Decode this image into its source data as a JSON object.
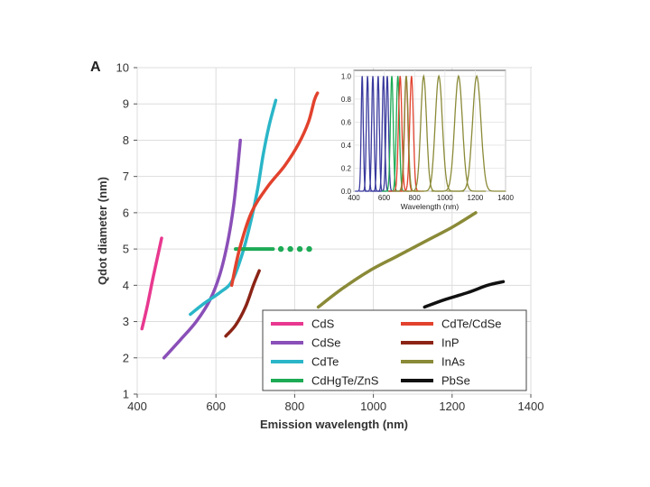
{
  "chart_data": {
    "type": "line",
    "panel_label": "A",
    "xlabel": "Emission wavelength (nm)",
    "ylabel": "Qdot diameter (nm)",
    "xlim": [
      400,
      1400
    ],
    "ylim": [
      1,
      10
    ],
    "xticks": [
      "400",
      "600",
      "800",
      "1000",
      "1200",
      "1400"
    ],
    "yticks": [
      "1",
      "2",
      "3",
      "4",
      "5",
      "6",
      "7",
      "8",
      "9",
      "10"
    ],
    "grid": true,
    "legend_position": "bottom-right",
    "series": [
      {
        "name": "CdS",
        "color": "#e8388f",
        "style": "solid",
        "points": [
          [
            412,
            2.8
          ],
          [
            425,
            3.4
          ],
          [
            440,
            4.2
          ],
          [
            452,
            4.8
          ],
          [
            462,
            5.3
          ]
        ]
      },
      {
        "name": "CdSe",
        "color": "#8a4fb8",
        "style": "solid",
        "points": [
          [
            468,
            2.0
          ],
          [
            510,
            2.5
          ],
          [
            550,
            3.0
          ],
          [
            585,
            3.6
          ],
          [
            610,
            4.3
          ],
          [
            630,
            5.2
          ],
          [
            645,
            6.2
          ],
          [
            655,
            7.2
          ],
          [
            662,
            8.0
          ]
        ]
      },
      {
        "name": "CdTe",
        "color": "#2ab6c8",
        "style": "solid",
        "points": [
          [
            535,
            3.2
          ],
          [
            570,
            3.5
          ],
          [
            610,
            3.8
          ],
          [
            640,
            4.1
          ],
          [
            665,
            4.8
          ],
          [
            685,
            5.6
          ],
          [
            705,
            6.6
          ],
          [
            720,
            7.6
          ],
          [
            735,
            8.4
          ],
          [
            752,
            9.1
          ]
        ]
      },
      {
        "name": "CdHgTe/ZnS",
        "color": "#1daa55",
        "style": "solid-then-dotted",
        "points": [
          [
            650,
            5.0
          ],
          [
            700,
            5.0
          ],
          [
            745,
            5.0
          ],
          [
            800,
            5.0
          ],
          [
            860,
            5.0
          ]
        ]
      },
      {
        "name": "CdTe/CdSe",
        "color": "#e2422d",
        "style": "solid",
        "points": [
          [
            640,
            4.0
          ],
          [
            660,
            5.0
          ],
          [
            690,
            6.0
          ],
          [
            730,
            6.7
          ],
          [
            775,
            7.3
          ],
          [
            810,
            7.9
          ],
          [
            835,
            8.5
          ],
          [
            850,
            9.1
          ],
          [
            858,
            9.3
          ]
        ]
      },
      {
        "name": "InP",
        "color": "#8b2416",
        "style": "solid",
        "points": [
          [
            625,
            2.6
          ],
          [
            650,
            2.9
          ],
          [
            675,
            3.4
          ],
          [
            695,
            4.0
          ],
          [
            710,
            4.4
          ]
        ]
      },
      {
        "name": "InAs",
        "color": "#8a8a38",
        "style": "solid",
        "points": [
          [
            860,
            3.4
          ],
          [
            920,
            3.9
          ],
          [
            990,
            4.4
          ],
          [
            1060,
            4.8
          ],
          [
            1130,
            5.2
          ],
          [
            1200,
            5.6
          ],
          [
            1260,
            6.0
          ]
        ]
      },
      {
        "name": "PbSe",
        "color": "#111111",
        "style": "solid",
        "points": [
          [
            1130,
            3.4
          ],
          [
            1180,
            3.6
          ],
          [
            1240,
            3.8
          ],
          [
            1290,
            4.0
          ],
          [
            1330,
            4.1
          ]
        ]
      }
    ],
    "inset": {
      "type": "line",
      "xlabel": "Wavelength (nm)",
      "xlim": [
        400,
        1400
      ],
      "ylim": [
        0,
        1.05
      ],
      "xticks": [
        "400",
        "600",
        "800",
        "1000",
        "1200",
        "1400"
      ],
      "yticks": [
        "0.0",
        "0.2",
        "0.4",
        "0.6",
        "0.8",
        "1.0"
      ],
      "ylabel": "",
      "peaks": [
        {
          "center": 455,
          "width": 16,
          "color": "#3a3a9e"
        },
        {
          "center": 490,
          "width": 18,
          "color": "#3a3a9e"
        },
        {
          "center": 525,
          "width": 18,
          "color": "#3a3a9e"
        },
        {
          "center": 560,
          "width": 18,
          "color": "#3a3a9e"
        },
        {
          "center": 595,
          "width": 19,
          "color": "#3a3a9e"
        },
        {
          "center": 620,
          "width": 20,
          "color": "#3a3a9e"
        },
        {
          "center": 650,
          "width": 22,
          "color": "#1daa55"
        },
        {
          "center": 690,
          "width": 24,
          "color": "#1daa55"
        },
        {
          "center": 705,
          "width": 26,
          "color": "#e2422d"
        },
        {
          "center": 745,
          "width": 26,
          "color": "#e2422d"
        },
        {
          "center": 780,
          "width": 28,
          "color": "#e2422d"
        },
        {
          "center": 745,
          "width": 30,
          "color": "#8a8a38"
        },
        {
          "center": 860,
          "width": 45,
          "color": "#8a8a38"
        },
        {
          "center": 960,
          "width": 55,
          "color": "#8a8a38"
        },
        {
          "center": 1090,
          "width": 60,
          "color": "#8a8a38"
        },
        {
          "center": 1210,
          "width": 65,
          "color": "#8a8a38"
        }
      ]
    }
  }
}
